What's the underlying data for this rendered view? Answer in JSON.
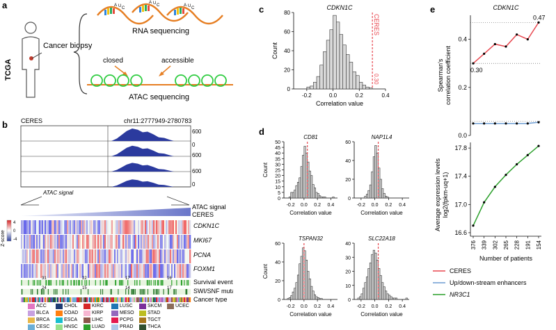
{
  "panel_labels": {
    "a": "a",
    "b": "b",
    "c": "c",
    "d": "d",
    "e": "e"
  },
  "panel_a": {
    "tcga": "TCGA",
    "biopsy": "Cancer biopsy",
    "rna": "RNA sequencing",
    "atac": "ATAC sequencing",
    "closed": "closed",
    "accessible": "accessible",
    "rna_bases": [
      "A",
      "U",
      "C",
      "A",
      "U",
      "C",
      "A",
      "U",
      "C"
    ]
  },
  "panel_b": {
    "ceres_label": "CERES",
    "locus": "chr11:2777949-2780783",
    "track_max": "600",
    "track_min": "0",
    "atac_signal_caption": "ATAC signal",
    "wedge_label1": "ATAC signal",
    "wedge_label2": "CERES",
    "zscore": "Z-score",
    "zscore_ticks": [
      "4",
      "0",
      "-4"
    ],
    "genes": [
      "CDKN1C",
      "MKI67",
      "PCNA",
      "FOXM1"
    ],
    "row_labels": [
      "Survival event",
      "SWI/SNF mutation",
      "Cancer type"
    ],
    "survival_counts": [
      "31",
      "22",
      "17",
      "16"
    ],
    "swi_counts": [
      "24",
      "15",
      "14",
      "17"
    ],
    "legend": [
      {
        "name": "ACC",
        "color": "#e377c2"
      },
      {
        "name": "CHOL",
        "color": "#1f3b73"
      },
      {
        "name": "KIRC",
        "color": "#d62728"
      },
      {
        "name": "LUSC",
        "color": "#1f77b4"
      },
      {
        "name": "SKCM",
        "color": "#7b2f9b"
      },
      {
        "name": "UCEC",
        "color": "#8c6d5a"
      },
      {
        "name": "BLCA",
        "color": "#c7a0e0"
      },
      {
        "name": "COAD",
        "color": "#ff7f0e"
      },
      {
        "name": "KIRP",
        "color": "#f7b6d2"
      },
      {
        "name": "MESO",
        "color": "#9467bd"
      },
      {
        "name": "STAD",
        "color": "#bcbd22"
      },
      {
        "name": "",
        "color": ""
      },
      {
        "name": "BRCA",
        "color": "#e8b84a"
      },
      {
        "name": "ESCA",
        "color": "#17becf"
      },
      {
        "name": "LIHC",
        "color": "#8c564b"
      },
      {
        "name": "PCPG",
        "color": "#e41a4e"
      },
      {
        "name": "TGCT",
        "color": "#a6761d"
      },
      {
        "name": "",
        "color": ""
      },
      {
        "name": "CESC",
        "color": "#6baed6"
      },
      {
        "name": "HNSC",
        "color": "#98df8a"
      },
      {
        "name": "LUAD",
        "color": "#2ca02c"
      },
      {
        "name": "PRAD",
        "color": "#aec7e8"
      },
      {
        "name": "THCA",
        "color": "#2f4f2f"
      },
      {
        "name": "",
        "color": ""
      }
    ]
  },
  "chart_data": [
    {
      "panel": "c",
      "type": "bar",
      "title": "CDKN1C",
      "xlabel": "Correlation value",
      "ylabel": "Count",
      "xlim": [
        -0.3,
        0.4
      ],
      "ylim": [
        0,
        80
      ],
      "xticks": [
        "-0.2",
        "0.0",
        "0.2",
        "0.4"
      ],
      "yticks": [
        "0",
        "20",
        "40",
        "60",
        "80"
      ],
      "bin_width": 0.025,
      "bin_starts": [
        -0.2,
        -0.175,
        -0.15,
        -0.125,
        -0.1,
        -0.075,
        -0.05,
        -0.025,
        0.0,
        0.025,
        0.05,
        0.075,
        0.1,
        0.125,
        0.15,
        0.175,
        0.2,
        0.225,
        0.25,
        0.275
      ],
      "values": [
        2,
        3,
        7,
        13,
        25,
        39,
        51,
        62,
        77,
        70,
        57,
        46,
        36,
        28,
        18,
        14,
        7,
        4,
        2,
        1
      ],
      "reference_line": {
        "value": 0.3,
        "label": "CERES",
        "value_label": "0.30",
        "color": "#e8474f"
      }
    },
    {
      "panel": "d",
      "type": "bar",
      "title": "CD81",
      "xlabel": "Correlation value",
      "ylabel": "Count",
      "xlim": [
        -0.3,
        0.5
      ],
      "ylim": [
        0,
        50
      ],
      "xticks": [
        "-0.2",
        "0.0",
        "0.2",
        "0.4"
      ],
      "yticks": [
        "0",
        "5",
        "10",
        "15",
        "20",
        "25",
        "30",
        "35",
        "40",
        "45",
        "50"
      ],
      "bin_width": 0.025,
      "bin_starts": [
        -0.275,
        -0.25,
        -0.225,
        -0.2,
        -0.175,
        -0.15,
        -0.125,
        -0.1,
        -0.075,
        -0.05,
        -0.025,
        0.0,
        0.025,
        0.05,
        0.075,
        0.1,
        0.125,
        0.15,
        0.175,
        0.2,
        0.225,
        0.25,
        0.275,
        0.3,
        0.325,
        0.35,
        0.375,
        0.4,
        0.425,
        0.45
      ],
      "values": [
        0,
        0,
        1,
        5,
        5,
        7,
        11,
        14,
        18,
        28,
        38,
        46,
        40,
        32,
        24,
        20,
        12,
        9,
        5,
        4,
        2,
        1,
        1,
        1,
        0,
        0,
        0,
        0,
        1,
        0
      ],
      "reference_line": {
        "value": 0.05,
        "color": "#e8474f"
      }
    },
    {
      "panel": "d",
      "type": "bar",
      "title": "NAP1L4",
      "xlabel": "Correlation value",
      "ylabel": "",
      "xlim": [
        -0.3,
        0.5
      ],
      "ylim": [
        0,
        60
      ],
      "xticks": [
        "-0.2",
        "0.0",
        "0.2",
        "0.4"
      ],
      "yticks": [
        "0",
        "20",
        "40",
        "60"
      ],
      "bin_width": 0.025,
      "bin_starts": [
        -0.15,
        -0.125,
        -0.1,
        -0.075,
        -0.05,
        -0.025,
        0.0,
        0.025,
        0.05,
        0.075,
        0.1,
        0.125,
        0.15,
        0.175
      ],
      "values": [
        2,
        4,
        8,
        14,
        28,
        44,
        56,
        48,
        32,
        20,
        10,
        5,
        2,
        1
      ],
      "reference_line": {
        "value": 0.05,
        "color": "#e8474f"
      }
    },
    {
      "panel": "d",
      "type": "bar",
      "title": "TSPAN32",
      "xlabel": "Correlation value",
      "ylabel": "Count",
      "xlim": [
        -0.3,
        0.5
      ],
      "ylim": [
        0,
        60
      ],
      "xticks": [
        "-0.2",
        "0.0",
        "0.2",
        "0.4"
      ],
      "yticks": [
        "0",
        "20",
        "40",
        "60"
      ],
      "bin_width": 0.025,
      "bin_starts": [
        -0.25,
        -0.225,
        -0.2,
        -0.175,
        -0.15,
        -0.125,
        -0.1,
        -0.075,
        -0.05,
        -0.025,
        0.0,
        0.025,
        0.05,
        0.075,
        0.1,
        0.125,
        0.15,
        0.175,
        0.2,
        0.225,
        0.25,
        0.275
      ],
      "values": [
        1,
        2,
        4,
        8,
        12,
        18,
        26,
        38,
        46,
        55,
        52,
        42,
        30,
        22,
        14,
        9,
        5,
        3,
        2,
        1,
        1,
        0
      ],
      "reference_line": {
        "value": 0.0,
        "color": "#e8474f"
      }
    },
    {
      "panel": "d",
      "type": "bar",
      "title": "SLC22A18",
      "xlabel": "Correlation value",
      "ylabel": "",
      "xlim": [
        -0.3,
        0.5
      ],
      "ylim": [
        0,
        40
      ],
      "xticks": [
        "-0.2",
        "0.0",
        "0.2",
        "0.4"
      ],
      "yticks": [
        "0",
        "10",
        "20",
        "30",
        "40"
      ],
      "bin_width": 0.025,
      "bin_starts": [
        -0.25,
        -0.225,
        -0.2,
        -0.175,
        -0.15,
        -0.125,
        -0.1,
        -0.075,
        -0.05,
        -0.025,
        0.0,
        0.025,
        0.05,
        0.075,
        0.1,
        0.125,
        0.15,
        0.175,
        0.2,
        0.225,
        0.25,
        0.275,
        0.3,
        0.325,
        0.35,
        0.375,
        0.4,
        0.425,
        0.45
      ],
      "values": [
        1,
        2,
        4,
        8,
        12,
        16,
        22,
        26,
        32,
        35,
        33,
        28,
        22,
        17,
        12,
        9,
        6,
        4,
        3,
        2,
        1,
        1,
        1,
        0,
        0,
        0,
        0,
        0,
        1
      ],
      "reference_line": {
        "value": 0.05,
        "color": "#e8474f"
      }
    },
    {
      "panel": "e",
      "type": "line",
      "title": "CDKN1C",
      "ylabel": "Spearman's correlation coefficient",
      "ylim": [
        0,
        0.5
      ],
      "yticks": [
        "0.0",
        "0.2",
        "0.4"
      ],
      "categories": [
        "376",
        "339",
        "302",
        "265",
        "228",
        "191",
        "154"
      ],
      "series": [
        {
          "name": "CERES",
          "color": "#e8474f",
          "values": [
            0.3,
            0.34,
            0.38,
            0.37,
            0.42,
            0.4,
            0.47
          ]
        },
        {
          "name": "Up/down-stream enhancers",
          "color": "#6b9bd2",
          "values": [
            0.05,
            0.05,
            0.05,
            0.05,
            0.05,
            0.05,
            0.055
          ]
        }
      ],
      "annotations": {
        "start": "0.30",
        "end": "0.47"
      },
      "dotted_lines": [
        0.3,
        0.47,
        0.06
      ]
    },
    {
      "panel": "e",
      "type": "line",
      "ylabel": "Average expression levels log2(fpkm-uq+1)",
      "xlabel": "Number of patients",
      "ylim": [
        16.55,
        17.88
      ],
      "yticks": [
        "16.6",
        "17.0",
        "17.4",
        "17.8"
      ],
      "categories": [
        "376",
        "339",
        "302",
        "265",
        "228",
        "191",
        "154"
      ],
      "series": [
        {
          "name": "NR3C1",
          "color": "#2ca02c",
          "values": [
            16.7,
            17.03,
            17.25,
            17.42,
            17.57,
            17.7,
            17.83
          ]
        }
      ]
    }
  ],
  "panel_e_legend": [
    {
      "name": "CERES",
      "color": "#e8474f",
      "italic": false
    },
    {
      "name": "Up/down-stream enhancers",
      "color": "#6b9bd2",
      "italic": false
    },
    {
      "name": "NR3C1",
      "color": "#2ca02c",
      "italic": true
    }
  ]
}
